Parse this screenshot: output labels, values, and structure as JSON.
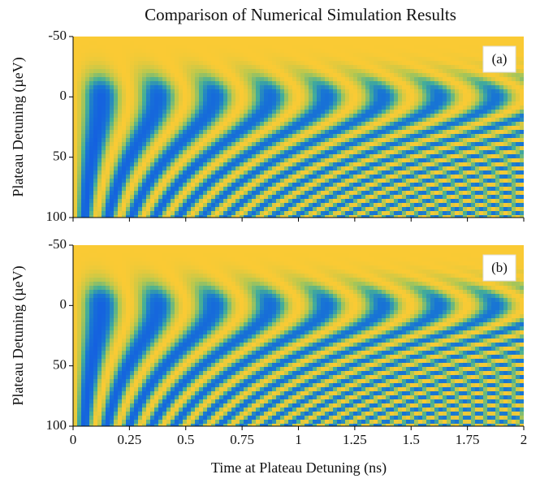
{
  "chart_data": [
    {
      "type": "heatmap",
      "title": "Comparison of Numerical Simulation Results",
      "label": "(a)",
      "ylabel": "Plateau Detuning (µeV)",
      "xlim": [
        0,
        2
      ],
      "xticks": [
        0,
        0.25,
        0.5,
        0.75,
        1,
        1.25,
        1.5,
        1.75,
        2
      ],
      "ylim": [
        -50,
        100
      ],
      "yticks": [
        -50,
        0,
        50,
        100
      ],
      "y_inverted": true
    },
    {
      "type": "heatmap",
      "label": "(b)",
      "xlabel": "Time at Plateau Detuning (ns)",
      "ylabel": "Plateau Detuning (µeV)",
      "xlim": [
        0,
        2
      ],
      "xticks": [
        0,
        0.25,
        0.5,
        0.75,
        1,
        1.25,
        1.5,
        1.75,
        2
      ],
      "ylim": [
        -50,
        100
      ],
      "yticks": [
        -50,
        0,
        50,
        100
      ],
      "y_inverted": true
    }
  ]
}
